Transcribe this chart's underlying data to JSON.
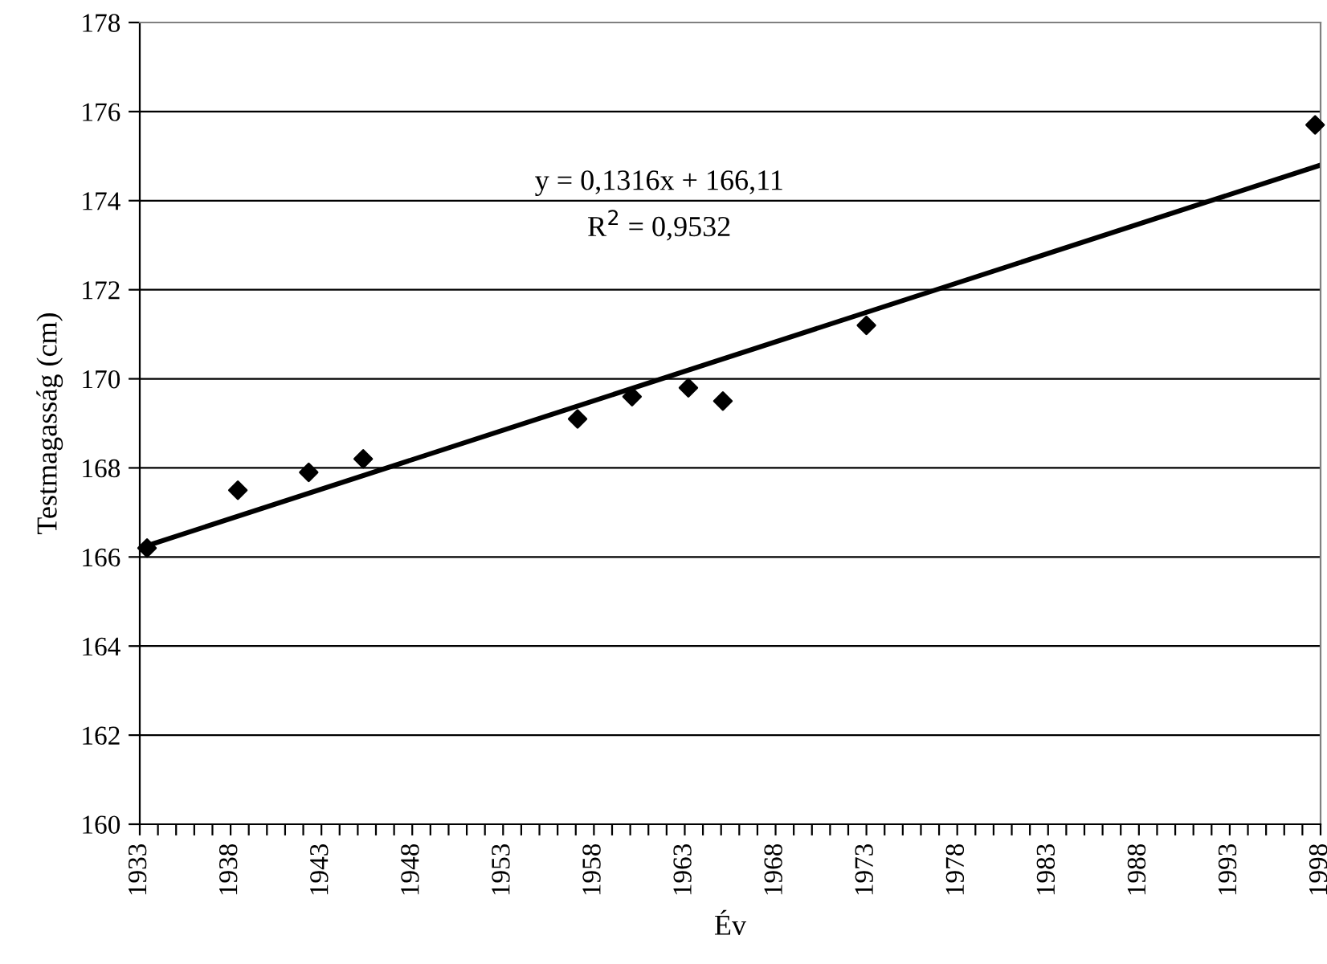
{
  "chart_data": {
    "type": "scatter",
    "xlabel": "Év",
    "ylabel": "Testmagasság (cm)",
    "series": [
      {
        "color": "#000000",
        "marker": "diamond",
        "x": [
          1933.4,
          1938.4,
          1942.3,
          1945.3,
          1957.1,
          1960.1,
          1963.2,
          1965.1,
          1973.0,
          1997.7
        ],
        "values": [
          166.2,
          167.5,
          167.9,
          168.2,
          169.1,
          169.6,
          169.8,
          169.5,
          171.2,
          175.7
        ]
      },
      {
        "type": "line",
        "color": "#000000",
        "marker": "none",
        "line_style": "solid",
        "x": [
          1933,
          1998
        ],
        "values": [
          166.2,
          174.8
        ]
      }
    ],
    "annotations": [
      "y = 0,1316x + 166,11",
      "R$^{2}$ = 0,9532"
    ],
    "xlim": [
      1933,
      1998
    ],
    "xticks": [
      1933,
      {
        "value": 1934,
        "label": null
      },
      {
        "value": 1935,
        "label": null
      },
      {
        "value": 1936,
        "label": null
      },
      {
        "value": 1937,
        "label": null
      },
      1938,
      {
        "value": 1939,
        "label": null
      },
      {
        "value": 1940,
        "label": null
      },
      {
        "value": 1941,
        "label": null
      },
      {
        "value": 1942,
        "label": null
      },
      1943,
      {
        "value": 1944,
        "label": null
      },
      {
        "value": 1945,
        "label": null
      },
      {
        "value": 1946,
        "label": null
      },
      {
        "value": 1947,
        "label": null
      },
      1948,
      {
        "value": 1949,
        "label": null
      },
      {
        "value": 1950,
        "label": null
      },
      {
        "value": 1951,
        "label": null
      },
      {
        "value": 1952,
        "label": null
      },
      1953,
      {
        "value": 1954,
        "label": null
      },
      {
        "value": 1955,
        "label": null
      },
      {
        "value": 1956,
        "label": null
      },
      {
        "value": 1957,
        "label": null
      },
      1958,
      {
        "value": 1959,
        "label": null
      },
      {
        "value": 1960,
        "label": null
      },
      {
        "value": 1961,
        "label": null
      },
      {
        "value": 1962,
        "label": null
      },
      1963,
      {
        "value": 1964,
        "label": null
      },
      {
        "value": 1965,
        "label": null
      },
      {
        "value": 1966,
        "label": null
      },
      {
        "value": 1967,
        "label": null
      },
      1968,
      {
        "value": 1969,
        "label": null
      },
      {
        "value": 1970,
        "label": null
      },
      {
        "value": 1971,
        "label": null
      },
      {
        "value": 1972,
        "label": null
      },
      1973,
      {
        "value": 1974,
        "label": null
      },
      {
        "value": 1975,
        "label": null
      },
      {
        "value": 1976,
        "label": null
      },
      {
        "value": 1977,
        "label": null
      },
      1978,
      {
        "value": 1979,
        "label": null
      },
      {
        "value": 1980,
        "label": null
      },
      {
        "value": 1981,
        "label": null
      },
      {
        "value": 1982,
        "label": null
      },
      1983,
      {
        "value": 1984,
        "label": null
      },
      {
        "value": 1985,
        "label": null
      },
      {
        "value": 1986,
        "label": null
      },
      {
        "value": 1987,
        "label": null
      },
      1988,
      {
        "value": 1989,
        "label": null
      },
      {
        "value": 1990,
        "label": null
      },
      {
        "value": 1991,
        "label": null
      },
      {
        "value": 1992,
        "label": null
      },
      1993,
      {
        "value": 1994,
        "label": null
      },
      {
        "value": 1995,
        "label": null
      },
      {
        "value": 1996,
        "label": null
      },
      {
        "value": 1997,
        "label": null
      },
      1998
    ],
    "ylim": [
      160,
      178
    ],
    "yticks": [
      160,
      162,
      164,
      166,
      168,
      170,
      172,
      174,
      176,
      178
    ],
    "grid": "y",
    "legend": false
  }
}
